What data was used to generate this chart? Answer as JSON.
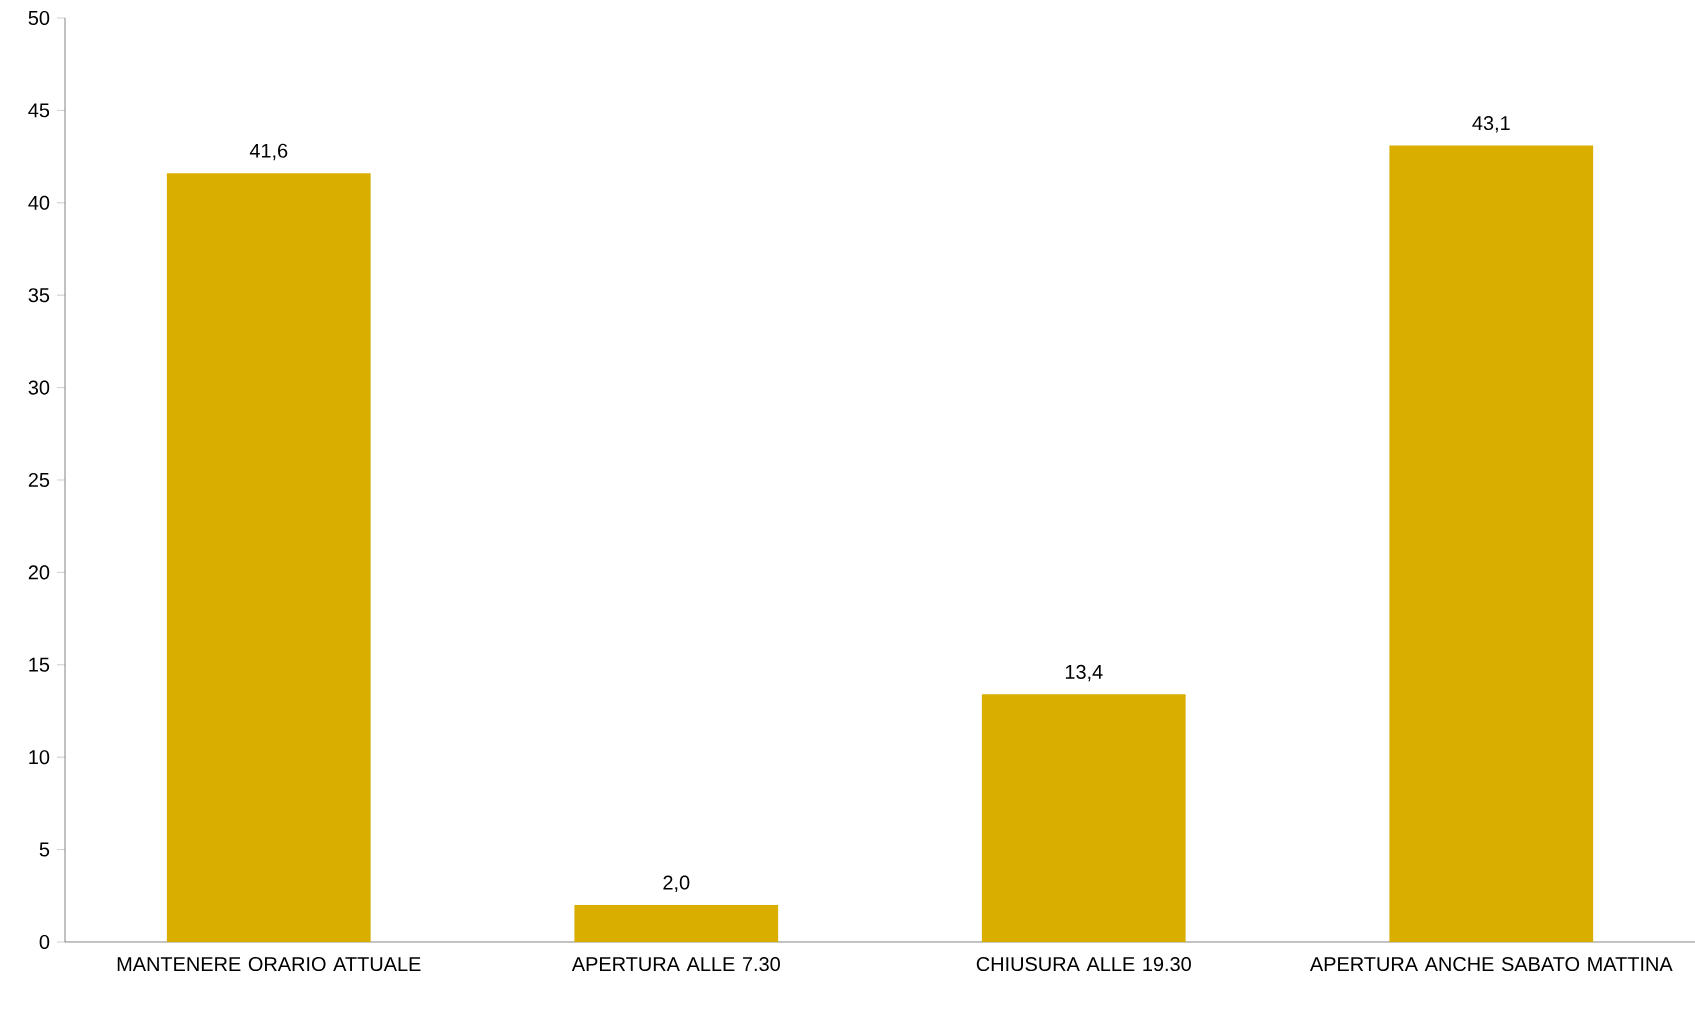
{
  "chart_data": {
    "type": "bar",
    "categories": [
      "MANTENERE ORARIO ATTUALE",
      "APERTURA ALLE 7.30",
      "CHIUSURA ALLE 19.30",
      "APERTURA ANCHE SABATO MATTINA"
    ],
    "values": [
      41.6,
      2.0,
      13.4,
      43.1
    ],
    "value_labels": [
      "41,6",
      "2,0",
      "13,4",
      "43,1"
    ],
    "color": "#d9ae00",
    "ylim": [
      0,
      50
    ],
    "yticks": [
      0,
      5,
      10,
      15,
      20,
      25,
      30,
      35,
      40,
      45,
      50
    ],
    "grid": false
  }
}
